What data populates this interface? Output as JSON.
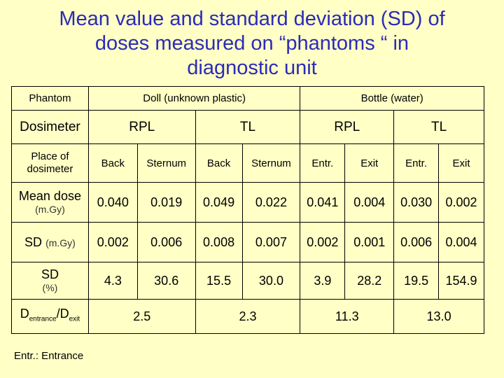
{
  "title_lines": [
    "Mean value and standard deviation (SD) of",
    "doses measured on “phantoms “ in",
    "diagnostic unit"
  ],
  "table": {
    "phantom_label": "Phantom",
    "doll": "Doll (unknown plastic)",
    "bottle": "Bottle (water)",
    "dosimeter_label": "Dosimeter",
    "dosimeters": [
      "RPL",
      "TL",
      "RPL",
      "TL"
    ],
    "place_label": "Place of dosimeter",
    "places": [
      "Back",
      "Sternum",
      "Back",
      "Sternum",
      "Entr.",
      "Exit",
      "Entr.",
      "Exit"
    ],
    "mean_label": "Mean dose",
    "mean_unit": "(m.Gy)",
    "mean": [
      "0.040",
      "0.019",
      "0.049",
      "0.022",
      "0.041",
      "0.004",
      "0.030",
      "0.002"
    ],
    "sd_label": "SD",
    "sd_unit": "(m.Gy)",
    "sd": [
      "0.002",
      "0.006",
      "0.008",
      "0.007",
      "0.002",
      "0.001",
      "0.006",
      "0.004"
    ],
    "sdp_label": "SD",
    "sdp_unit": "(%)",
    "sd_percent": [
      "4.3",
      "30.6",
      "15.5",
      "30.0",
      "3.9",
      "28.2",
      "19.5",
      "154.9"
    ],
    "ratio_label_main": "D",
    "ratio_label_sub1": "entrance",
    "ratio_label_slash": "/D",
    "ratio_label_sub2": "exit",
    "ratios": [
      "2.5",
      "2.3",
      "11.3",
      "13.0"
    ]
  },
  "footnote": "Entr.: Entrance"
}
